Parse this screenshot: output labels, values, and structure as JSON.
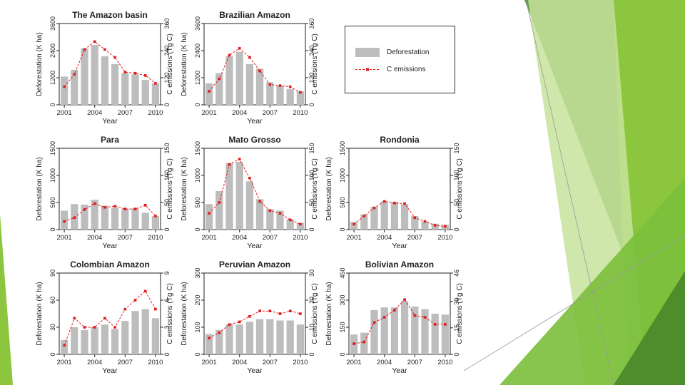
{
  "theme": {
    "bar_color": "#bdbdbd",
    "line_color": "#e31a1c",
    "green_dark": "#5a9b3c",
    "green_mid": "#7cbf3f",
    "green_light": "#c9e3a3"
  },
  "legend": {
    "deforestation_label": "Deforestation",
    "emissions_label": "C emissions"
  },
  "chart_data": [
    {
      "type": "bar",
      "title": "The Amazon basin",
      "xlabel": "Year",
      "ylabel": "Deforestation (K ha)",
      "y2label": "C emissions (Tg C)",
      "categories": [
        2001,
        2002,
        2003,
        2004,
        2005,
        2006,
        2007,
        2008,
        2009,
        2010
      ],
      "xticks": [
        2001,
        2004,
        2007,
        2010
      ],
      "ylim": [
        0,
        3600
      ],
      "yticks": [
        0,
        1200,
        2400,
        3600
      ],
      "y2lim": [
        0,
        360
      ],
      "y2ticks": [
        0,
        120,
        240,
        360
      ],
      "series": [
        {
          "name": "Deforestation",
          "values": [
            1250,
            1550,
            2500,
            2650,
            2150,
            1800,
            1400,
            1350,
            1100,
            950
          ]
        },
        {
          "name": "C emissions",
          "values": [
            80,
            135,
            245,
            280,
            245,
            210,
            145,
            140,
            130,
            95
          ]
        }
      ]
    },
    {
      "type": "bar",
      "title": "Brazilian Amazon",
      "xlabel": "Year",
      "ylabel": "Deforestation (K ha)",
      "y2label": "C emissions (Tg C)",
      "categories": [
        2001,
        2002,
        2003,
        2004,
        2005,
        2006,
        2007,
        2008,
        2009,
        2010
      ],
      "xticks": [
        2001,
        2004,
        2007,
        2010
      ],
      "ylim": [
        0,
        3600
      ],
      "yticks": [
        0,
        1200,
        2400,
        3600
      ],
      "y2lim": [
        0,
        360
      ],
      "y2ticks": [
        0,
        120,
        240,
        360
      ],
      "series": [
        {
          "name": "Deforestation",
          "values": [
            950,
            1400,
            2150,
            2350,
            1800,
            1600,
            1000,
            850,
            700,
            600
          ]
        },
        {
          "name": "C emissions",
          "values": [
            60,
            115,
            220,
            250,
            210,
            150,
            90,
            85,
            80,
            55
          ]
        }
      ]
    },
    {
      "type": "bar",
      "title": "Para",
      "xlabel": "Year",
      "ylabel": "Deforestation (K ha)",
      "y2label": "C emissions (Tg C)",
      "categories": [
        2001,
        2002,
        2003,
        2004,
        2005,
        2006,
        2007,
        2008,
        2009,
        2010
      ],
      "xticks": [
        2001,
        2004,
        2007,
        2010
      ],
      "ylim": [
        0,
        1500
      ],
      "yticks": [
        0,
        500,
        1000,
        1500
      ],
      "y2lim": [
        0,
        150
      ],
      "y2ticks": [
        0,
        50,
        100,
        150
      ],
      "series": [
        {
          "name": "Deforestation",
          "values": [
            350,
            470,
            460,
            550,
            440,
            400,
            380,
            390,
            310,
            250
          ]
        },
        {
          "name": "C emissions",
          "values": [
            15,
            22,
            37,
            48,
            41,
            43,
            38,
            38,
            45,
            25
          ]
        }
      ]
    },
    {
      "type": "bar",
      "title": "Mato Grosso",
      "xlabel": "Year",
      "ylabel": "Deforestation (K ha)",
      "y2label": "C emissions (Tg C)",
      "categories": [
        2001,
        2002,
        2003,
        2004,
        2005,
        2006,
        2007,
        2008,
        2009,
        2010
      ],
      "xticks": [
        2001,
        2004,
        2007,
        2010
      ],
      "ylim": [
        0,
        1500
      ],
      "yticks": [
        0,
        500,
        1000,
        1500
      ],
      "y2lim": [
        0,
        150
      ],
      "y2ticks": [
        0,
        50,
        100,
        150
      ],
      "series": [
        {
          "name": "Deforestation",
          "values": [
            470,
            710,
            1230,
            1250,
            890,
            560,
            380,
            350,
            190,
            120
          ]
        },
        {
          "name": "C emissions",
          "values": [
            30,
            50,
            120,
            130,
            95,
            52,
            35,
            30,
            18,
            10
          ]
        }
      ]
    },
    {
      "type": "bar",
      "title": "Rondonia",
      "xlabel": "Year",
      "ylabel": "Deforestation (K ha)",
      "y2label": "C emissions (Tg C)",
      "categories": [
        2001,
        2002,
        2003,
        2004,
        2005,
        2006,
        2007,
        2008,
        2009,
        2010
      ],
      "xticks": [
        2001,
        2004,
        2007,
        2010
      ],
      "ylim": [
        0,
        1500
      ],
      "yticks": [
        0,
        500,
        1000,
        1500
      ],
      "y2lim": [
        0,
        150
      ],
      "y2ticks": [
        0,
        50,
        100,
        150
      ],
      "series": [
        {
          "name": "Deforestation",
          "values": [
            140,
            280,
            420,
            520,
            510,
            470,
            250,
            150,
            110,
            90
          ]
        },
        {
          "name": "C emissions",
          "values": [
            10,
            25,
            40,
            52,
            49,
            48,
            22,
            15,
            8,
            6
          ]
        }
      ]
    },
    {
      "type": "bar",
      "title": "Colombian Amazon",
      "xlabel": "Year",
      "ylabel": "Deforestation (K ha)",
      "y2label": "C emissions (Tg C)",
      "categories": [
        2001,
        2002,
        2003,
        2004,
        2005,
        2006,
        2007,
        2008,
        2009,
        2010
      ],
      "xticks": [
        2001,
        2004,
        2007,
        2010
      ],
      "ylim": [
        0,
        90
      ],
      "yticks": [
        0,
        30,
        60,
        90
      ],
      "y2lim": [
        0,
        9
      ],
      "y2ticks": [
        0,
        3,
        6,
        9
      ],
      "series": [
        {
          "name": "Deforestation",
          "values": [
            16,
            30,
            27,
            30,
            33,
            28,
            37,
            48,
            50,
            40
          ]
        },
        {
          "name": "C emissions",
          "values": [
            1.0,
            4.0,
            3.0,
            3.0,
            4.0,
            3.0,
            5.0,
            6.0,
            7.0,
            5.0
          ]
        }
      ]
    },
    {
      "type": "bar",
      "title": "Peruvian Amazon",
      "xlabel": "Year",
      "ylabel": "Deforestation (K ha)",
      "y2label": "C emissions (Tg C)",
      "categories": [
        2001,
        2002,
        2003,
        2004,
        2005,
        2006,
        2007,
        2008,
        2009,
        2010
      ],
      "xticks": [
        2001,
        2004,
        2007,
        2010
      ],
      "ylim": [
        0,
        300
      ],
      "yticks": [
        0,
        100,
        200,
        300
      ],
      "y2lim": [
        0,
        30
      ],
      "y2ticks": [
        0,
        10,
        20,
        30
      ],
      "series": [
        {
          "name": "Deforestation",
          "values": [
            75,
            90,
            110,
            110,
            120,
            130,
            130,
            125,
            125,
            110
          ]
        },
        {
          "name": "C emissions",
          "values": [
            6,
            8,
            11,
            12,
            14,
            16,
            16,
            15,
            16,
            15
          ]
        }
      ]
    },
    {
      "type": "bar",
      "title": "Bolivian Amazon",
      "xlabel": "Year",
      "ylabel": "Deforestation (K ha)",
      "y2label": "C emissions (Tg C)",
      "categories": [
        2001,
        2002,
        2003,
        2004,
        2005,
        2006,
        2007,
        2008,
        2009,
        2010
      ],
      "xticks": [
        2001,
        2004,
        2007,
        2010
      ],
      "ylim": [
        0,
        450
      ],
      "yticks": [
        0,
        150,
        300,
        450
      ],
      "y2lim": [
        0,
        46
      ],
      "y2ticks": [
        0,
        15,
        30,
        46
      ],
      "series": [
        {
          "name": "Deforestation",
          "values": [
            110,
            120,
            245,
            260,
            260,
            295,
            265,
            250,
            225,
            220
          ]
        },
        {
          "name": "C emissions",
          "values": [
            6,
            7,
            18,
            21,
            25,
            31,
            22,
            21,
            17,
            17
          ]
        }
      ]
    }
  ]
}
